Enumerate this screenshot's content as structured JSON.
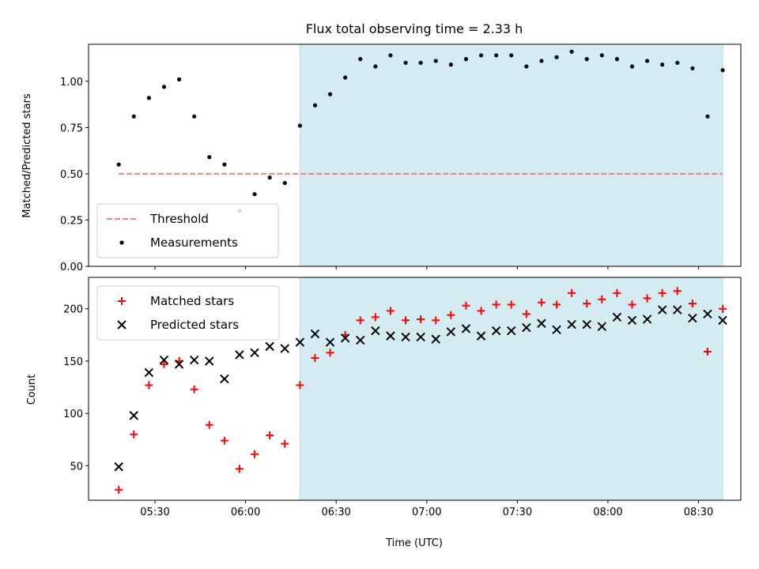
{
  "chart_data": [
    {
      "type": "scatter",
      "title": "Flux total observing time = 2.33 h",
      "xlabel": "",
      "ylabel": "Matched/Predicted stars",
      "xlim": [
        "05:08",
        "08:44"
      ],
      "ylim": [
        0,
        1.2
      ],
      "yticks": [
        0.0,
        0.25,
        0.5,
        0.75,
        1.0
      ],
      "ytick_labels": [
        "0.00",
        "0.25",
        "0.50",
        "0.75",
        "1.00"
      ],
      "grid": false,
      "legend_position": "lower-left",
      "shaded_region": {
        "x_start": "06:18",
        "x_end": "08:38",
        "color": "#d4ebf2"
      },
      "threshold": {
        "name": "Threshold",
        "value": 0.5,
        "x_start": "05:18",
        "x_end": "08:38",
        "color": "#f08080"
      },
      "series": [
        {
          "name": "Measurements",
          "color": "#000000",
          "marker": "dot",
          "x": [
            "05:18",
            "05:23",
            "05:28",
            "05:33",
            "05:38",
            "05:43",
            "05:48",
            "05:53",
            "05:58",
            "06:03",
            "06:08",
            "06:13",
            "06:18",
            "06:23",
            "06:28",
            "06:33",
            "06:38",
            "06:43",
            "06:48",
            "06:53",
            "06:58",
            "07:03",
            "07:08",
            "07:13",
            "07:18",
            "07:23",
            "07:28",
            "07:33",
            "07:38",
            "07:43",
            "07:48",
            "07:53",
            "07:58",
            "08:03",
            "08:08",
            "08:13",
            "08:18",
            "08:23",
            "08:28",
            "08:33",
            "08:38"
          ],
          "y": [
            0.55,
            0.81,
            0.91,
            0.97,
            1.01,
            0.81,
            0.59,
            0.55,
            0.3,
            0.39,
            0.48,
            0.45,
            0.76,
            0.87,
            0.93,
            1.02,
            1.12,
            1.08,
            1.14,
            1.1,
            1.1,
            1.11,
            1.09,
            1.12,
            1.14,
            1.14,
            1.14,
            1.08,
            1.11,
            1.13,
            1.16,
            1.12,
            1.14,
            1.12,
            1.08,
            1.11,
            1.09,
            1.1,
            1.07,
            0.81,
            1.06
          ]
        }
      ]
    },
    {
      "type": "scatter",
      "title": "",
      "xlabel": "Time (UTC)",
      "ylabel": "Count",
      "xlim": [
        "05:08",
        "08:44"
      ],
      "ylim": [
        17,
        230
      ],
      "yticks": [
        50,
        100,
        150,
        200
      ],
      "ytick_labels": [
        "50",
        "100",
        "150",
        "200"
      ],
      "xticks": [
        "05:30",
        "06:00",
        "06:30",
        "07:00",
        "07:30",
        "08:00",
        "08:30"
      ],
      "grid": false,
      "legend_position": "upper-left",
      "shaded_region": {
        "x_start": "06:18",
        "x_end": "08:38",
        "color": "#d4ebf2"
      },
      "series": [
        {
          "name": "Matched stars",
          "color": "#ff0000",
          "marker": "plus",
          "x": [
            "05:18",
            "05:23",
            "05:28",
            "05:33",
            "05:38",
            "05:43",
            "05:48",
            "05:53",
            "05:58",
            "06:03",
            "06:08",
            "06:13",
            "06:18",
            "06:23",
            "06:28",
            "06:33",
            "06:38",
            "06:43",
            "06:48",
            "06:53",
            "06:58",
            "07:03",
            "07:08",
            "07:13",
            "07:18",
            "07:23",
            "07:28",
            "07:33",
            "07:38",
            "07:43",
            "07:48",
            "07:53",
            "07:58",
            "08:03",
            "08:08",
            "08:13",
            "08:18",
            "08:23",
            "08:28",
            "08:33",
            "08:38"
          ],
          "y": [
            27,
            80,
            127,
            147,
            150,
            123,
            89,
            74,
            47,
            61,
            79,
            71,
            127,
            153,
            158,
            175,
            189,
            192,
            198,
            189,
            190,
            189,
            194,
            203,
            198,
            204,
            204,
            195,
            206,
            204,
            215,
            205,
            209,
            215,
            204,
            210,
            215,
            217,
            205,
            159,
            200
          ]
        },
        {
          "name": "Predicted stars",
          "color": "#000000",
          "marker": "x",
          "x": [
            "05:18",
            "05:23",
            "05:28",
            "05:33",
            "05:38",
            "05:43",
            "05:48",
            "05:53",
            "05:58",
            "06:03",
            "06:08",
            "06:13",
            "06:18",
            "06:23",
            "06:28",
            "06:33",
            "06:38",
            "06:43",
            "06:48",
            "06:53",
            "06:58",
            "07:03",
            "07:08",
            "07:13",
            "07:18",
            "07:23",
            "07:28",
            "07:33",
            "07:38",
            "07:43",
            "07:48",
            "07:53",
            "07:58",
            "08:03",
            "08:08",
            "08:13",
            "08:18",
            "08:23",
            "08:28",
            "08:33",
            "08:38"
          ],
          "y": [
            49,
            98,
            139,
            151,
            147,
            151,
            150,
            133,
            156,
            158,
            164,
            162,
            168,
            176,
            168,
            172,
            170,
            179,
            174,
            173,
            173,
            171,
            178,
            181,
            174,
            179,
            179,
            182,
            186,
            180,
            185,
            185,
            183,
            192,
            189,
            190,
            199,
            199,
            191,
            195,
            189
          ]
        }
      ]
    }
  ]
}
